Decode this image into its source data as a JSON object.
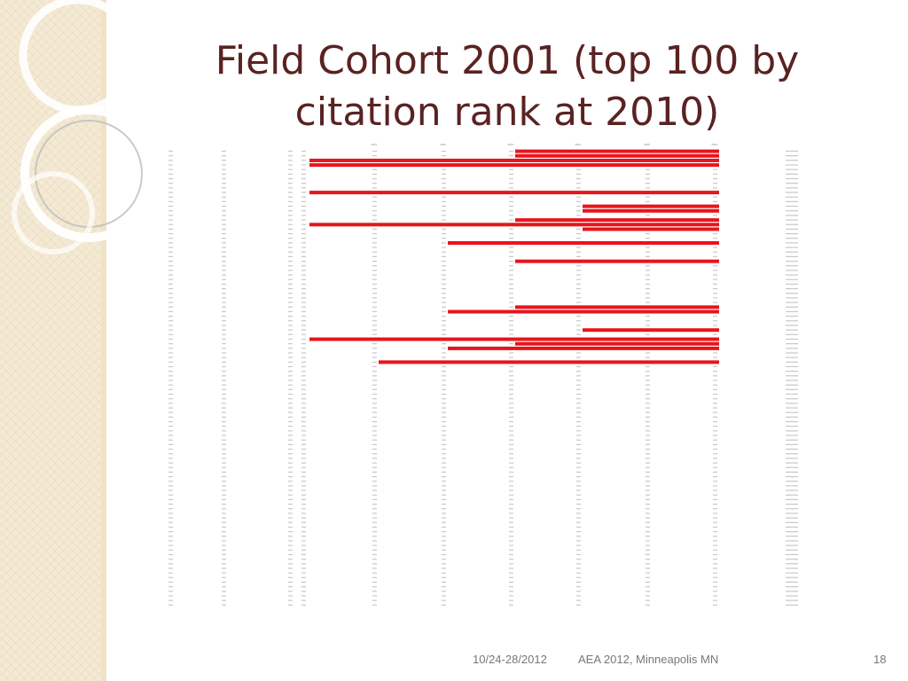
{
  "slide": {
    "title_line1": "Field Cohort 2001 (top 100 by",
    "title_line2": "citation rank at 2010)",
    "footer_date": "10/24-28/2012",
    "footer_event": "AEA 2012, Minneapolis MN",
    "slide_number": "18"
  },
  "colors": {
    "bar": "#e8141c",
    "title": "#5a2222",
    "sidebar": "#f4ead4",
    "footer": "#777777"
  },
  "chart_data": {
    "type": "table",
    "years": [
      "2001",
      "2002",
      "2003",
      "2004",
      "2005",
      "2006"
    ],
    "row_start": [
      4,
      4,
      1,
      1,
      null,
      null,
      null,
      null,
      null,
      1,
      null,
      null,
      5,
      5,
      null,
      4,
      1,
      5,
      null,
      null,
      3,
      null,
      null,
      null,
      4,
      null,
      null,
      null,
      null,
      null,
      null,
      null,
      null,
      null,
      4,
      3,
      null,
      null,
      null,
      5,
      null,
      1,
      4,
      3,
      null,
      null,
      2,
      null,
      null,
      null,
      null,
      null,
      null,
      null,
      null,
      null,
      null,
      null,
      null,
      null,
      null,
      null,
      null,
      null,
      null,
      null,
      null,
      null,
      null,
      null,
      null,
      null,
      null,
      null,
      null,
      null,
      null,
      null,
      null,
      null,
      null,
      null,
      null,
      null,
      null,
      null,
      null,
      null,
      null,
      null,
      null,
      null,
      null,
      null,
      null,
      null,
      null,
      null,
      null,
      null
    ]
  }
}
